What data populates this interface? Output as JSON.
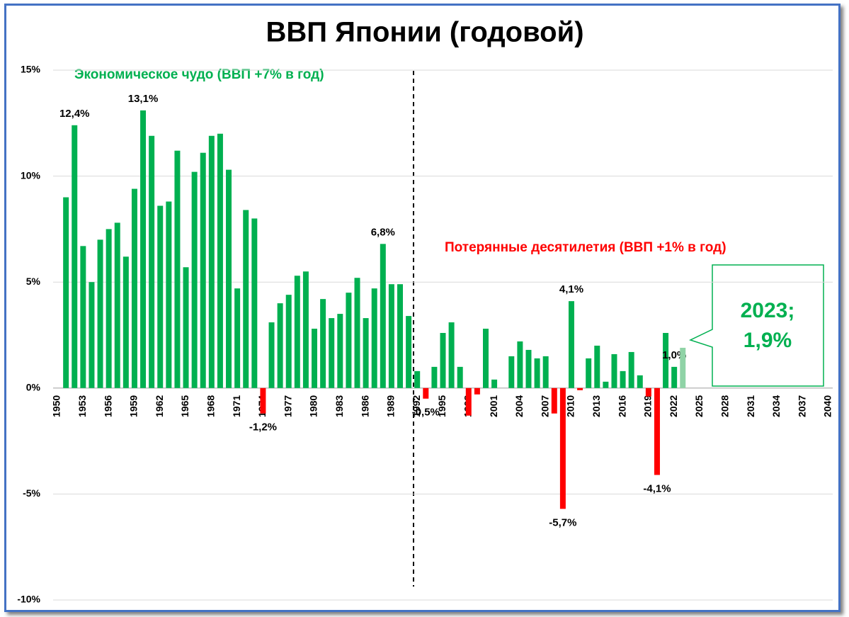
{
  "chart_data": {
    "type": "bar",
    "title": "ВВП Японии (годовой)",
    "annotations": [
      "Экономическое чудо (ВВП +7% в год)",
      "Потерянные десятилетия (ВВП +1% в год)"
    ],
    "callout": [
      "2023;",
      "1,9%"
    ],
    "categories": [
      "1950",
      null,
      null,
      "1953",
      null,
      null,
      "1956",
      null,
      null,
      "1959",
      null,
      null,
      "1962",
      null,
      null,
      "1965",
      null,
      null,
      "1968",
      null,
      null,
      "1971",
      null,
      null,
      "1974",
      null,
      null,
      "1977",
      null,
      null,
      "1980",
      null,
      null,
      "1983",
      null,
      null,
      "1986",
      null,
      null,
      "1989",
      null,
      null,
      "1992",
      null,
      null,
      "1995",
      null,
      null,
      "1998",
      null,
      null,
      "2001",
      null,
      null,
      "2004",
      null,
      null,
      "2007",
      null,
      null,
      "2010",
      null,
      null,
      "2013",
      null,
      null,
      "2016",
      null,
      null,
      "2019",
      null,
      null,
      "2022",
      null,
      null,
      "2025",
      null,
      null,
      "2028",
      null,
      null,
      "2031",
      null,
      null,
      "2034",
      null,
      null,
      "2037",
      null,
      null,
      "2040"
    ],
    "values": [
      null,
      9.0,
      12.4,
      6.7,
      5.0,
      7.0,
      7.5,
      7.8,
      6.2,
      9.4,
      13.1,
      11.9,
      8.6,
      8.8,
      11.2,
      5.7,
      10.2,
      11.1,
      11.9,
      12.0,
      10.3,
      4.7,
      8.4,
      8.0,
      -1.2,
      3.1,
      4.0,
      4.4,
      5.3,
      5.5,
      2.8,
      4.2,
      3.3,
      3.5,
      4.5,
      5.2,
      3.3,
      4.7,
      6.8,
      4.9,
      4.9,
      3.4,
      0.8,
      -0.5,
      1.0,
      2.6,
      3.1,
      1.0,
      -1.3,
      -0.3,
      2.8,
      0.4,
      0.0,
      1.5,
      2.2,
      1.8,
      1.4,
      1.5,
      -1.2,
      -5.7,
      4.1,
      -0.1,
      1.4,
      2.0,
      0.3,
      1.6,
      0.8,
      1.7,
      0.6,
      -0.4,
      -4.1,
      2.6,
      1.0,
      1.9,
      null,
      null,
      null,
      null,
      null,
      null,
      null,
      null,
      null,
      null,
      null,
      null,
      null,
      null,
      null,
      null,
      null
    ],
    "value_labels": [
      null,
      null,
      "12,4%",
      null,
      null,
      null,
      null,
      null,
      null,
      null,
      "13,1%",
      null,
      null,
      null,
      null,
      null,
      null,
      null,
      null,
      null,
      null,
      null,
      null,
      null,
      "-1,2%",
      null,
      null,
      null,
      null,
      null,
      null,
      null,
      null,
      null,
      null,
      null,
      null,
      null,
      "6,8%",
      null,
      null,
      null,
      null,
      "-0,5%",
      null,
      null,
      null,
      null,
      null,
      null,
      null,
      null,
      null,
      null,
      null,
      null,
      null,
      null,
      null,
      "-5,7%",
      "4,1%",
      null,
      null,
      null,
      null,
      null,
      null,
      null,
      null,
      null,
      "-4,1%",
      null,
      "1,0%",
      null,
      null,
      null,
      null,
      null,
      null,
      null,
      null,
      null,
      null,
      null,
      null,
      null,
      null,
      null,
      null,
      null,
      null
    ],
    "bar_colors": {
      "positive": "#00b050",
      "negative": "#ff0000",
      "last": "#8fd3a6"
    },
    "ylim": [
      -10,
      15
    ],
    "yticks": [
      {
        "value": -10,
        "label": "-10%"
      },
      {
        "value": -5,
        "label": "-5%"
      },
      {
        "value": 0,
        "label": "0%"
      },
      {
        "value": 5,
        "label": "5%"
      },
      {
        "value": 10,
        "label": "10%"
      },
      {
        "value": 15,
        "label": "15%"
      }
    ],
    "grid": true
  }
}
